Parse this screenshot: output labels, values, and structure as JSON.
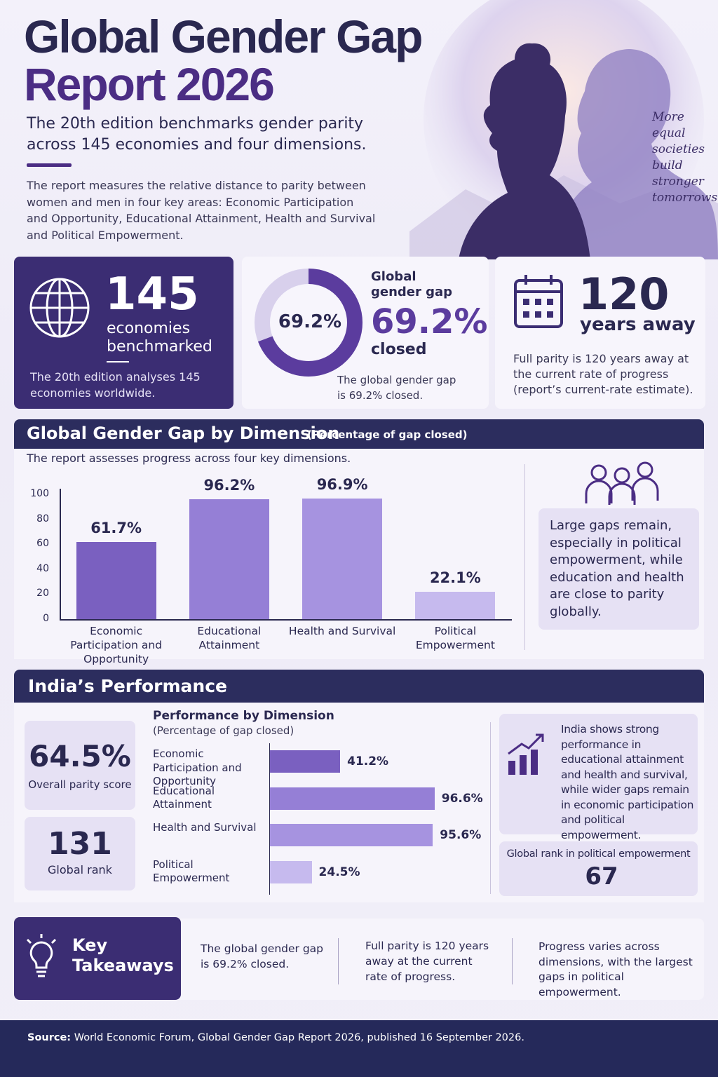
{
  "header": {
    "title_line1": "Global Gender Gap",
    "title_line2": "Report 2026",
    "subtitle": "The 20th edition benchmarks gender parity across 145 economies and four dimensions.",
    "intro": "The report measures the relative distance to parity between women and men in four key areas: Economic Participation and Opportunity, Educational Attainment, Health and Survival and Political Empowerment.",
    "quote": "More equal societies build stronger tomorrows"
  },
  "stats": {
    "economies": {
      "number": "145",
      "label": "economies benchmarked",
      "note": "The 20th edition analyses 145 economies worldwide."
    },
    "parity": {
      "number": "120",
      "label": "years away",
      "note": "Full parity is 120 years away at the current rate of progress (report’s current-rate estimate)."
    }
  },
  "dimension_section": {
    "title": "Global Gender Gap by Dimension",
    "subtitle": "(Percentage of gap closed)",
    "description": "The report assesses progress across four key dimensions."
  },
  "india": {
    "title": "India’s Performance",
    "parity_score": "64.5%",
    "parity_label": "Overall parity score",
    "rank": "131",
    "rank_label": "Global rank",
    "note": "India shows strong performance in educational attainment and health and survival, while wider gaps remain in economic participation and political empowerment.",
    "political_rank_label": "Global rank in political empowerment",
    "political_rank": "67"
  },
  "takeaways": {
    "title": "Key Takeaways",
    "items": [
      "The global gender gap is 69.2% closed.",
      "Full parity is 120 years away at the current rate of progress.",
      "Progress varies across dimensions, with the largest gaps in political empowerment."
    ]
  },
  "footer": {
    "label": "Source:",
    "text": "World Economic Forum, Global Gender Gap Report 2026, published 16 September 2026."
  },
  "chart_data": [
    {
      "type": "donut",
      "title": "Global gender gap",
      "caption": "closed",
      "note": "The global gender gap is 69.2% closed.",
      "values": [
        69.2
      ],
      "value_labels": [
        "69.2%"
      ],
      "ylim": [
        0,
        100
      ],
      "color": "#5b3c9e",
      "track_color": "#d8d0ec"
    },
    {
      "type": "bar",
      "categories": [
        "Economic Participation and Opportunity",
        "Educational Attainment",
        "Health and Survival",
        "Political Empowerment"
      ],
      "values": [
        61.7,
        96.2,
        96.9,
        22.1
      ],
      "value_labels": [
        "61.7%",
        "96.2%",
        "96.9%",
        "22.1%"
      ],
      "colors": [
        "#7a60c0",
        "#957fd6",
        "#a693e0",
        "#c6baee"
      ],
      "ylim": [
        0,
        100
      ],
      "yticks": [
        0,
        20,
        40,
        60,
        80,
        100
      ],
      "note": "Large gaps remain, especially in political empowerment, while education and health are close to parity globally."
    },
    {
      "type": "hbar",
      "title": "Performance by Dimension",
      "subtitle": "(Percentage of gap closed)",
      "categories": [
        "Economic Participation and Opportunity",
        "Educational Attainment",
        "Health and Survival",
        "Political Empowerment"
      ],
      "values": [
        41.2,
        96.6,
        95.6,
        24.5
      ],
      "value_labels": [
        "41.2%",
        "96.6%",
        "95.6%",
        "24.5%"
      ],
      "colors": [
        "#7a60c0",
        "#957fd6",
        "#a693e0",
        "#c6baee"
      ],
      "xlim": [
        0,
        100
      ]
    }
  ]
}
